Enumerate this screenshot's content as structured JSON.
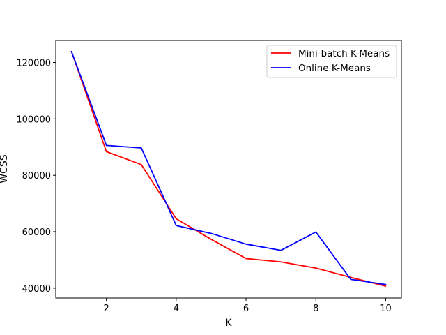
{
  "chart_data": {
    "type": "line",
    "xlabel": "K",
    "ylabel": "WCSS",
    "xlim": [
      0.55,
      10.45
    ],
    "ylim": [
      36500,
      127800
    ],
    "x": [
      1,
      2,
      3,
      4,
      5,
      6,
      7,
      8,
      9,
      10
    ],
    "xticks": [
      2,
      4,
      6,
      8,
      10
    ],
    "yticks": [
      40000,
      60000,
      80000,
      100000,
      120000
    ],
    "series": [
      {
        "name": "Mini-batch K-Means",
        "color": "#ff0000",
        "values": [
          123900,
          88400,
          83800,
          64600,
          57300,
          50500,
          49300,
          47100,
          43800,
          40700
        ]
      },
      {
        "name": "Online K-Means",
        "color": "#0000ff",
        "values": [
          123900,
          90600,
          89700,
          62200,
          59400,
          55600,
          53400,
          59900,
          43100,
          41300
        ]
      }
    ],
    "legend_position": "top-right",
    "grid": false
  }
}
